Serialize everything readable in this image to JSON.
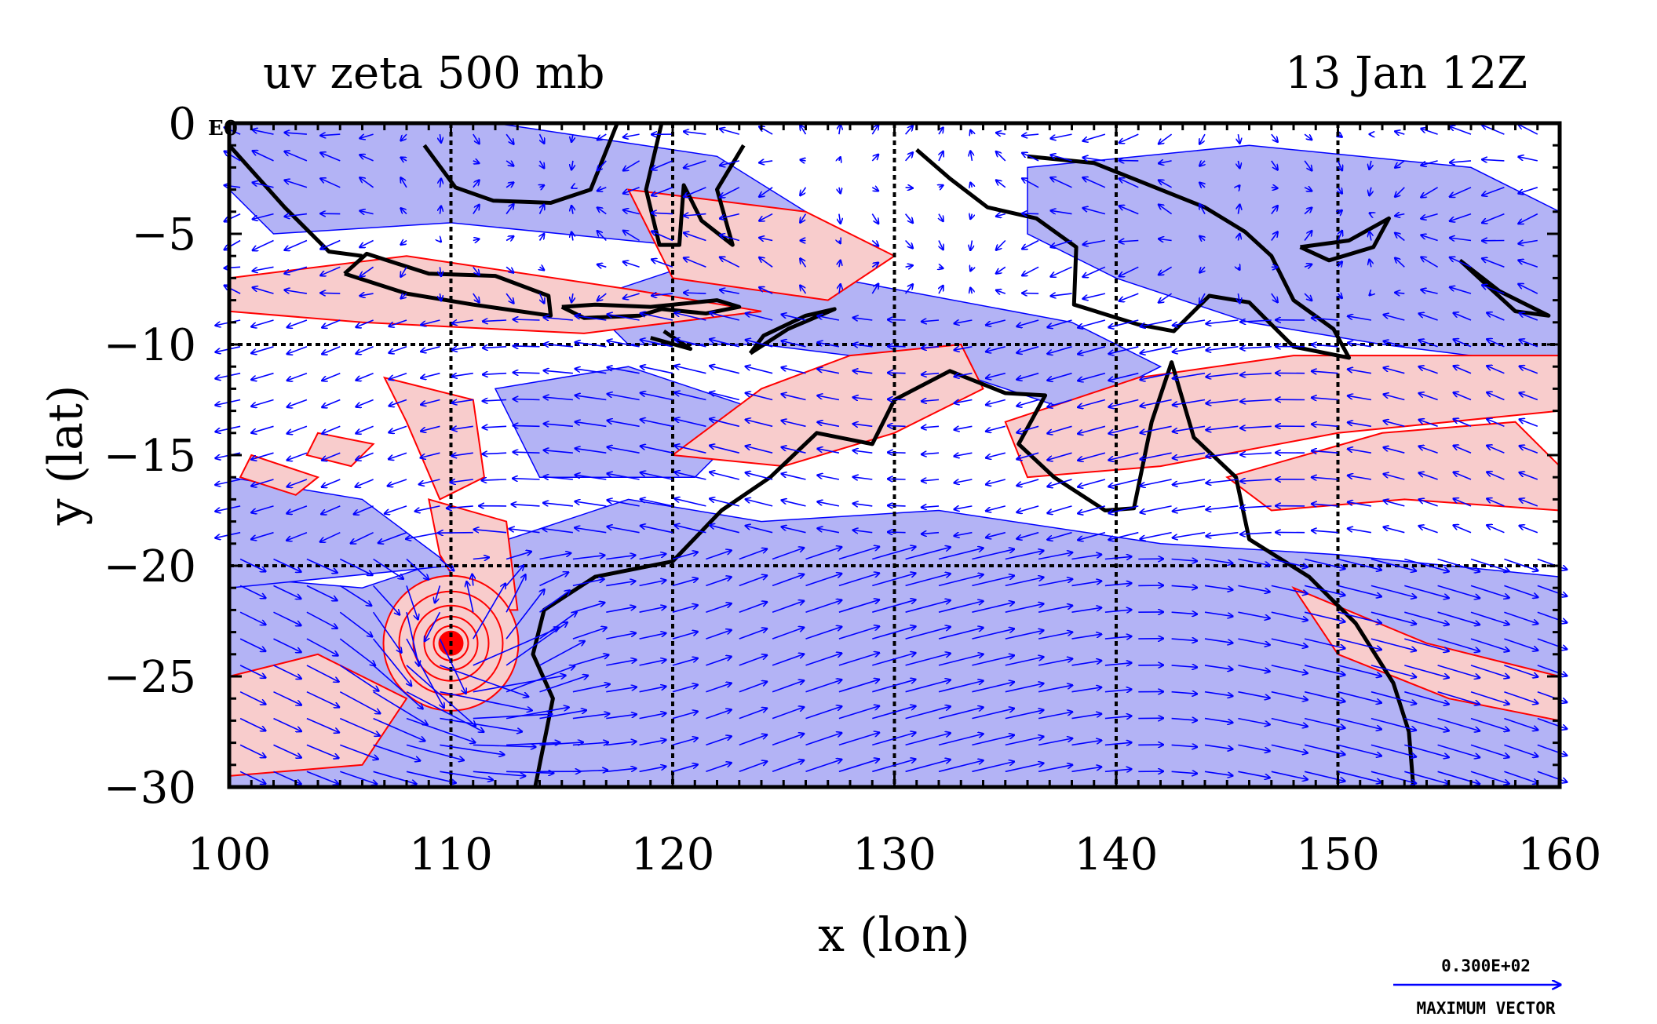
{
  "title_left": "uv zeta 500 mb",
  "title_right": "13 Jan 12Z",
  "xlabel": "x (lon)",
  "ylabel": "y (lat)",
  "corner_tag": "E0",
  "legend": {
    "magnitude": "0.300E+02",
    "caption": "MAXIMUM VECTOR"
  },
  "colors": {
    "negative_fill": "#b3b3f5",
    "positive_fill": "#f8cccc",
    "positive_contour": "#ff0000",
    "vector": "#0000ff",
    "coast": "#000000"
  },
  "chart_data": {
    "type": "map",
    "projection": "cylindrical lon-lat",
    "xlim": [
      100,
      160
    ],
    "ylim": [
      -30,
      0
    ],
    "xticks": [
      100,
      110,
      120,
      130,
      140,
      150,
      160
    ],
    "yticks": [
      0,
      -5,
      -10,
      -15,
      -20,
      -25,
      -30
    ],
    "grid_lines_x": [
      110,
      120,
      130,
      140,
      150
    ],
    "grid_lines_y": [
      -10,
      -20
    ],
    "grid": true,
    "fields": [
      {
        "name": "uv",
        "kind": "wind vectors",
        "color": "blue"
      },
      {
        "name": "zeta",
        "kind": "relative vorticity (filled + contoured)",
        "level": "500 mb"
      }
    ],
    "features": [
      {
        "kind": "cyclonic vortex",
        "lon": 110,
        "lat": -23.5,
        "sign": "positive"
      }
    ],
    "legend_position": "bottom-right"
  }
}
